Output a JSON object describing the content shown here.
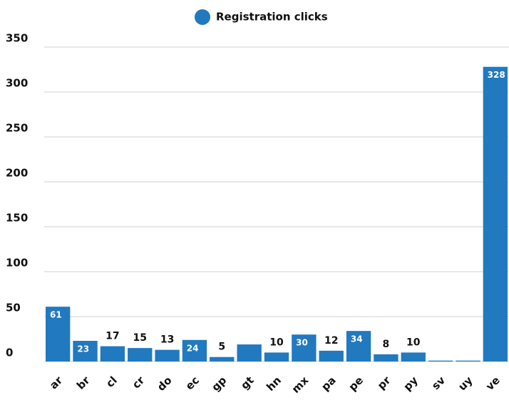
{
  "chart_data": {
    "type": "bar",
    "legend": "Registration clicks",
    "categories": [
      "ar",
      "br",
      "cl",
      "cr",
      "do",
      "ec",
      "gp",
      "gt",
      "hn",
      "mx",
      "pa",
      "pe",
      "pr",
      "py",
      "sv",
      "uy",
      "ve"
    ],
    "values": [
      61,
      23,
      17,
      15,
      13,
      24,
      5,
      19,
      10,
      30,
      12,
      34,
      8,
      10,
      1,
      1,
      328
    ],
    "value_labels": [
      "61",
      "23",
      "17",
      "15",
      "13",
      "24",
      "5",
      null,
      "10",
      "30",
      "12",
      "34",
      "8",
      "10",
      null,
      null,
      "328"
    ],
    "color": "#2179c0",
    "ylim": [
      0,
      350
    ],
    "yticks": [
      0,
      50,
      100,
      150,
      200,
      250,
      300,
      350
    ],
    "grid": true
  }
}
